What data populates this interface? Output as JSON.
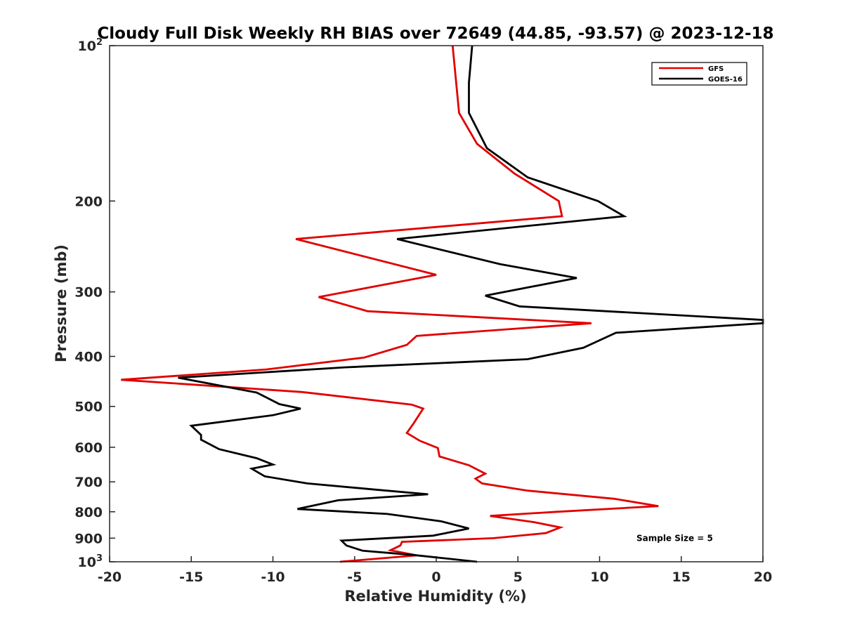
{
  "chart_data": {
    "type": "line",
    "title": "Cloudy Full Disk Weekly RH BIAS over 72649 (44.85, -93.57) @ 2023-12-18",
    "xlabel": "Relative Humidity (%)",
    "ylabel": "Pressure (mb)",
    "xlim": [
      -20,
      20
    ],
    "ylim": [
      100,
      1000
    ],
    "y_scale": "log",
    "y_reversed": true,
    "grid": false,
    "legend_position": "top-right",
    "x_ticks": [
      "-20",
      "-15",
      "-10",
      "-5",
      "0",
      "5",
      "10",
      "15",
      "20"
    ],
    "y_ticks": [
      {
        "value": 100,
        "base": "10",
        "exp": "2"
      },
      {
        "value": 200,
        "base": "200",
        "exp": ""
      },
      {
        "value": 300,
        "base": "300",
        "exp": ""
      },
      {
        "value": 400,
        "base": "400",
        "exp": ""
      },
      {
        "value": 500,
        "base": "500",
        "exp": ""
      },
      {
        "value": 600,
        "base": "600",
        "exp": ""
      },
      {
        "value": 700,
        "base": "700",
        "exp": ""
      },
      {
        "value": 800,
        "base": "800",
        "exp": ""
      },
      {
        "value": 900,
        "base": "900",
        "exp": ""
      },
      {
        "value": 1000,
        "base": "10",
        "exp": "3"
      }
    ],
    "series": [
      {
        "name": "GFS",
        "color": "#e10000",
        "points": [
          [
            1.0,
            100
          ],
          [
            1.4,
            135
          ],
          [
            2.5,
            155
          ],
          [
            4.8,
            177
          ],
          [
            7.5,
            200
          ],
          [
            7.7,
            214
          ],
          [
            -8.6,
            237
          ],
          [
            0.0,
            278
          ],
          [
            -7.2,
            307
          ],
          [
            -4.2,
            327
          ],
          [
            9.5,
            345
          ],
          [
            -1.2,
            365
          ],
          [
            -1.8,
            380
          ],
          [
            -4.4,
            402
          ],
          [
            -10.4,
            424
          ],
          [
            -19.3,
            444
          ],
          [
            -8.2,
            469
          ],
          [
            -1.5,
            496
          ],
          [
            -0.8,
            505
          ],
          [
            -1.4,
            540
          ],
          [
            -1.8,
            563
          ],
          [
            -1.0,
            583
          ],
          [
            0.1,
            602
          ],
          [
            0.2,
            625
          ],
          [
            2.0,
            650
          ],
          [
            3.0,
            675
          ],
          [
            2.4,
            690
          ],
          [
            2.8,
            705
          ],
          [
            5.6,
            728
          ],
          [
            10.9,
            755
          ],
          [
            13.6,
            780
          ],
          [
            7.4,
            800
          ],
          [
            3.3,
            815
          ],
          [
            6.0,
            838
          ],
          [
            7.6,
            858
          ],
          [
            6.7,
            880
          ],
          [
            3.5,
            900
          ],
          [
            -2.1,
            915
          ],
          [
            -2.2,
            930
          ],
          [
            -2.8,
            950
          ],
          [
            -1.2,
            972
          ],
          [
            -5.9,
            1000
          ]
        ]
      },
      {
        "name": "GOES-16",
        "color": "#000000",
        "points": [
          [
            2.2,
            100
          ],
          [
            2.0,
            118
          ],
          [
            2.0,
            135
          ],
          [
            3.1,
            158
          ],
          [
            5.6,
            180
          ],
          [
            9.9,
            200
          ],
          [
            11.5,
            214
          ],
          [
            -2.4,
            237
          ],
          [
            3.9,
            265
          ],
          [
            8.6,
            282
          ],
          [
            3.0,
            305
          ],
          [
            5.1,
            320
          ],
          [
            20.0,
            340
          ],
          [
            20.0,
            345
          ],
          [
            11.0,
            360
          ],
          [
            9.0,
            385
          ],
          [
            5.6,
            405
          ],
          [
            -5.6,
            420
          ],
          [
            -15.8,
            440
          ],
          [
            -11.0,
            470
          ],
          [
            -9.6,
            495
          ],
          [
            -8.3,
            505
          ],
          [
            -10.0,
            520
          ],
          [
            -15.0,
            545
          ],
          [
            -14.4,
            568
          ],
          [
            -14.4,
            580
          ],
          [
            -13.3,
            605
          ],
          [
            -11.0,
            630
          ],
          [
            -10.0,
            648
          ],
          [
            -11.3,
            660
          ],
          [
            -10.5,
            683
          ],
          [
            -7.9,
            705
          ],
          [
            -3.7,
            725
          ],
          [
            -0.5,
            740
          ],
          [
            -6.0,
            760
          ],
          [
            -8.5,
            790
          ],
          [
            -3.0,
            808
          ],
          [
            0.3,
            835
          ],
          [
            2.0,
            862
          ],
          [
            -0.2,
            890
          ],
          [
            -5.8,
            910
          ],
          [
            -5.5,
            930
          ],
          [
            -4.5,
            952
          ],
          [
            -1.4,
            970
          ],
          [
            2.5,
            1000
          ]
        ]
      }
    ],
    "annotations": [
      {
        "text": "Sample Size = 5",
        "x": 14.6,
        "y": 900
      }
    ]
  }
}
